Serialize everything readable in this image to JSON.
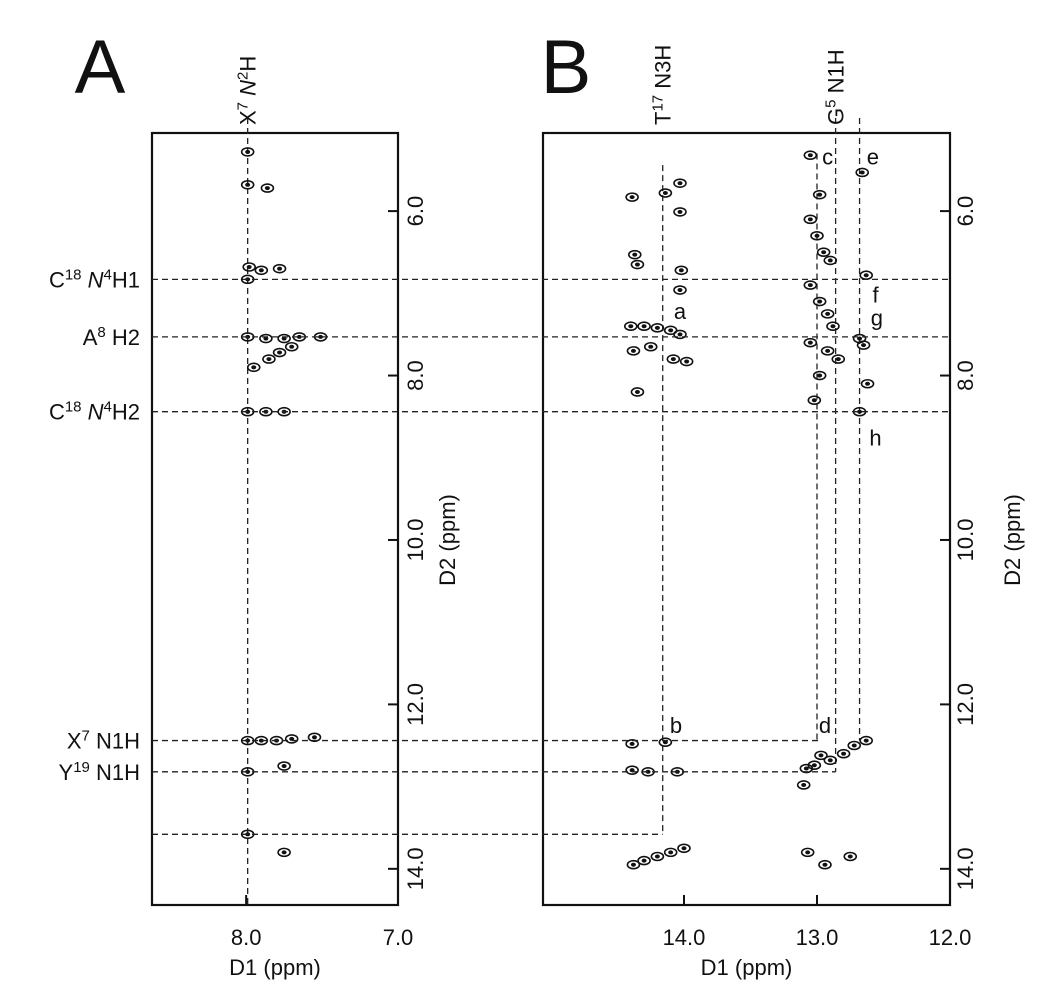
{
  "chart_data": [
    {
      "type": "scatter",
      "panel_label": "A",
      "xlabel": "D1 (ppm)",
      "ylabel": "D2 (ppm)",
      "color": "#111111",
      "xlim": [
        8.62,
        7.0
      ],
      "ylim": [
        5.05,
        14.44
      ],
      "xticks": [
        {
          "value": 8,
          "label": "8.0"
        },
        {
          "value": 7,
          "label": "7.0"
        }
      ],
      "yticks": [
        {
          "value": 6,
          "label": "6.0"
        },
        {
          "value": 8,
          "label": "8.0"
        },
        {
          "value": 10,
          "label": "10.0"
        },
        {
          "value": 12,
          "label": "12.0"
        },
        {
          "value": 14,
          "label": "14.0"
        }
      ],
      "vlines": [
        {
          "d1": 7.99,
          "d2_range": [
            5.05,
            14.44
          ],
          "label": [
            {
              "t": "X"
            },
            {
              "t": "7",
              "sup": true
            },
            {
              "t": " N",
              "italic": true
            },
            {
              "t": "2",
              "sup": true
            },
            {
              "t": "H"
            }
          ]
        }
      ],
      "x": [
        7.99,
        7.99,
        7.86,
        7.9,
        7.99,
        7.99,
        7.87,
        7.75,
        7.65,
        7.51,
        7.95,
        7.85,
        7.78,
        7.7,
        7.99,
        7.87,
        7.75,
        7.99,
        7.9,
        7.8,
        7.7,
        7.55,
        7.99,
        7.75,
        7.99,
        7.75,
        7.98,
        7.78
      ],
      "y": [
        5.28,
        5.68,
        5.72,
        6.72,
        6.83,
        7.53,
        7.55,
        7.55,
        7.53,
        7.53,
        7.9,
        7.8,
        7.72,
        7.65,
        8.44,
        8.44,
        8.44,
        12.44,
        12.44,
        12.44,
        12.42,
        12.4,
        12.82,
        12.75,
        13.58,
        13.8,
        6.68,
        6.7
      ],
      "annotations": []
    },
    {
      "type": "scatter",
      "panel_label": "B",
      "xlabel": "D1 (ppm)",
      "ylabel": "D2 (ppm)",
      "color": "#111111",
      "xlim": [
        15.06,
        12.0
      ],
      "ylim": [
        5.05,
        14.44
      ],
      "xticks": [
        {
          "value": 14,
          "label": "14.0"
        },
        {
          "value": 13,
          "label": "13.0"
        },
        {
          "value": 12,
          "label": "12.0"
        }
      ],
      "yticks": [
        {
          "value": 6,
          "label": "6.0"
        },
        {
          "value": 8,
          "label": "8.0"
        },
        {
          "value": 10,
          "label": "10.0"
        },
        {
          "value": 12,
          "label": "12.0"
        },
        {
          "value": 14,
          "label": "14.0"
        }
      ],
      "vlines": [
        {
          "d1": 14.16,
          "d2_range": [
            5.44,
            13.58
          ],
          "label": [
            {
              "t": "T"
            },
            {
              "t": "17",
              "sup": true
            },
            {
              "t": " N3H"
            }
          ]
        },
        {
          "d1": 13.0,
          "d2_range": [
            5.3,
            12.44
          ]
        },
        {
          "d1": 12.86,
          "d2_range": [
            5.05,
            12.82
          ],
          "label": [
            {
              "t": "G"
            },
            {
              "t": "5",
              "sup": true
            },
            {
              "t": " N1H"
            }
          ]
        },
        {
          "d1": 12.68,
          "d2_range": [
            5.05,
            12.44
          ]
        }
      ],
      "x": [
        14.39,
        14.14,
        14.03,
        14.03,
        14.37,
        14.35,
        14.02,
        14.03,
        14.4,
        14.3,
        14.2,
        14.1,
        14.03,
        14.38,
        14.25,
        14.08,
        14.35,
        13.98,
        13.05,
        13.05,
        12.98,
        13.0,
        12.95,
        12.9,
        13.05,
        12.98,
        12.92,
        12.88,
        13.05,
        12.92,
        12.84,
        12.98,
        13.02,
        12.66,
        12.63,
        12.65,
        12.68,
        12.68,
        12.62,
        14.39,
        14.14,
        14.39,
        14.27,
        14.05,
        14.3,
        14.2,
        14.1,
        14.0,
        14.38,
        13.08,
        13.02,
        12.9,
        12.8,
        12.72,
        12.63,
        13.1,
        12.97,
        13.07,
        12.94,
        12.75
      ],
      "y": [
        5.83,
        5.78,
        5.66,
        6.01,
        6.53,
        6.65,
        6.72,
        6.96,
        7.4,
        7.4,
        7.42,
        7.45,
        7.5,
        7.7,
        7.65,
        7.8,
        8.2,
        7.83,
        5.32,
        6.1,
        5.8,
        6.3,
        6.5,
        6.6,
        6.9,
        7.1,
        7.25,
        7.4,
        7.6,
        7.7,
        7.8,
        8.0,
        8.3,
        5.53,
        6.78,
        7.63,
        7.55,
        8.44,
        8.1,
        12.48,
        12.46,
        12.8,
        12.82,
        12.82,
        13.9,
        13.85,
        13.8,
        13.75,
        13.95,
        12.78,
        12.74,
        12.68,
        12.6,
        12.5,
        12.44,
        12.98,
        12.62,
        13.8,
        13.95,
        13.85
      ],
      "annotations": [
        {
          "text": "a",
          "x": 14.03,
          "y": 7.24
        },
        {
          "text": "b",
          "x": 14.06,
          "y": 12.28
        },
        {
          "text": "c",
          "x": 12.92,
          "y": 5.36
        },
        {
          "text": "d",
          "x": 12.94,
          "y": 12.28
        },
        {
          "text": "e",
          "x": 12.58,
          "y": 5.36
        },
        {
          "text": "f",
          "x": 12.56,
          "y": 7.04
        },
        {
          "text": "g",
          "x": 12.55,
          "y": 7.32
        },
        {
          "text": "h",
          "x": 12.56,
          "y": 8.78
        }
      ]
    }
  ],
  "row_guides": [
    {
      "d2": 6.83,
      "end_d1": 12.0,
      "label": [
        {
          "t": "C"
        },
        {
          "t": "18",
          "sup": true
        },
        {
          "t": " N",
          "italic": true
        },
        {
          "t": "4",
          "sup": true
        },
        {
          "t": "H1"
        }
      ]
    },
    {
      "d2": 7.53,
      "end_d1": 12.0,
      "label": [
        {
          "t": "A"
        },
        {
          "t": "8",
          "sup": true
        },
        {
          "t": " H2"
        }
      ]
    },
    {
      "d2": 8.44,
      "end_d1": 12.0,
      "label": [
        {
          "t": "C"
        },
        {
          "t": "18",
          "sup": true
        },
        {
          "t": " N",
          "italic": true
        },
        {
          "t": "4",
          "sup": true
        },
        {
          "t": "H2"
        }
      ]
    },
    {
      "d2": 12.44,
      "end_d1": 12.98,
      "label": [
        {
          "t": "X"
        },
        {
          "t": "7",
          "sup": true
        },
        {
          "t": " N1H"
        }
      ]
    },
    {
      "d2": 12.82,
      "end_d1": 12.86,
      "label": [
        {
          "t": "Y"
        },
        {
          "t": "19",
          "sup": true
        },
        {
          "t": " N1H"
        }
      ]
    },
    {
      "d2": 13.58,
      "end_d1": 14.16
    }
  ]
}
